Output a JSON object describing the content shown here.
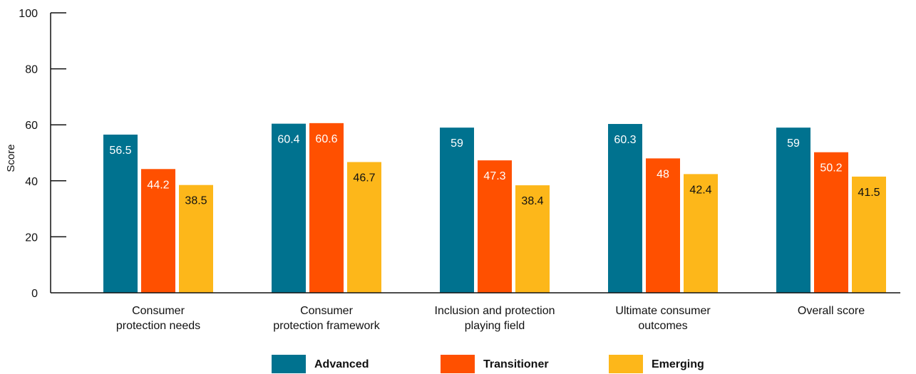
{
  "chart_data": {
    "type": "bar",
    "ylabel": "Score",
    "ylim": [
      0,
      100
    ],
    "yticks": [
      0,
      20,
      40,
      60,
      80,
      100
    ],
    "categories": [
      [
        "Consumer",
        "protection needs"
      ],
      [
        "Consumer",
        "protection framework"
      ],
      [
        "Inclusion and protection",
        "playing field"
      ],
      [
        "Ultimate consumer",
        "outcomes"
      ],
      [
        "Overall score"
      ]
    ],
    "series": [
      {
        "name": "Advanced",
        "color": "#00728F",
        "label_color": "#ffffff",
        "values": [
          56.5,
          60.4,
          59,
          60.3,
          59
        ]
      },
      {
        "name": "Transitioner",
        "color": "#FF5000",
        "label_color": "#ffffff",
        "values": [
          44.2,
          60.6,
          47.3,
          48,
          50.2
        ]
      },
      {
        "name": "Emerging",
        "color": "#FDB71A",
        "label_color": "#111111",
        "values": [
          38.5,
          46.7,
          38.4,
          42.4,
          41.5
        ]
      }
    ],
    "legend_position": "bottom-center",
    "grid": false
  }
}
